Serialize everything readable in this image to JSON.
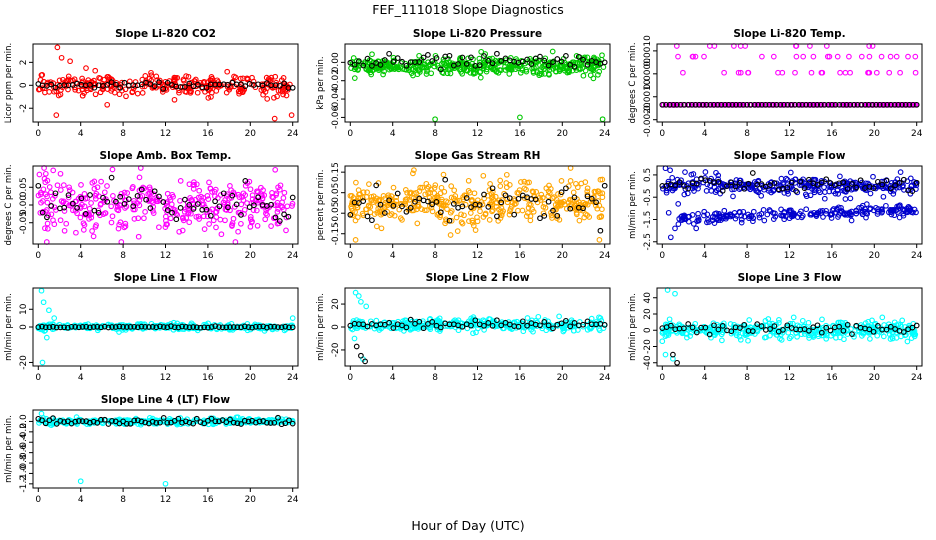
{
  "figure": {
    "title": "FEF_111018  Slope Diagnostics",
    "xlabel": "Hour of Day (UTC)"
  },
  "chart_data": [
    {
      "type": "scatter",
      "title": "Slope Li-820 CO2",
      "ylabel": "Licor ppm per min.",
      "xlim": [
        -0.5,
        24.5
      ],
      "ylim": [
        -3.2,
        3.6
      ],
      "xticks": [
        "0",
        "4",
        "8",
        "12",
        "16",
        "20",
        "24"
      ],
      "yticks": [
        {
          "v": -2,
          "label": "-2"
        },
        {
          "v": 0,
          "label": "0"
        },
        {
          "v": 2,
          "label": "2"
        }
      ],
      "colors": [
        "#ff0000",
        "#000000"
      ],
      "series": [
        {
          "color": "#ff0000",
          "kind": "cloud",
          "center": 0.0,
          "spread": 0.5,
          "density": 300,
          "outliers": [
            [
              1.8,
              3.3
            ],
            [
              2.2,
              2.4
            ],
            [
              1.7,
              -2.6
            ],
            [
              3.0,
              2.1
            ],
            [
              6.5,
              -1.7
            ],
            [
              23.9,
              -2.6
            ],
            [
              22.3,
              -2.9
            ],
            [
              4.5,
              1.5
            ]
          ]
        },
        {
          "color": "#000000",
          "kind": "hourly",
          "center": 0.0,
          "spread": 0.12,
          "density": 60
        }
      ]
    },
    {
      "type": "scatter",
      "title": "Slope Li-820 Pressure",
      "ylabel": "kPa per min.",
      "xlim": [
        -0.5,
        24.5
      ],
      "ylim": [
        -0.065,
        0.02
      ],
      "xticks": [
        "0",
        "4",
        "8",
        "12",
        "16",
        "20",
        "24"
      ],
      "yticks": [
        {
          "v": -0.06,
          "label": "-0.06"
        },
        {
          "v": -0.04,
          "label": "-0.04"
        },
        {
          "v": -0.02,
          "label": "-0.02"
        },
        {
          "v": 0.0,
          "label": "0.00"
        }
      ],
      "colors": [
        "#00c800",
        "#000000"
      ],
      "series": [
        {
          "color": "#00c800",
          "kind": "cloud",
          "center": -0.004,
          "spread": 0.006,
          "density": 420,
          "outliers": [
            [
              8.0,
              -0.062
            ],
            [
              16.0,
              -0.06
            ],
            [
              23.8,
              -0.062
            ]
          ]
        },
        {
          "color": "#000000",
          "kind": "hourly",
          "center": 0.0,
          "spread": 0.004,
          "density": 60
        }
      ]
    },
    {
      "type": "scatter",
      "title": "Slope Li-820 Temp.",
      "ylabel": "degrees C per min.",
      "xlim": [
        -0.5,
        24.5
      ],
      "ylim": [
        -0.0021,
        0.0013
      ],
      "xticks": [
        "0",
        "4",
        "8",
        "12",
        "16",
        "20",
        "24"
      ],
      "yticks": [
        {
          "v": -0.002,
          "label": "-0.0020"
        },
        {
          "v": -0.001,
          "label": "-0.0010"
        },
        {
          "v": 0.0,
          "label": "0.0000"
        },
        {
          "v": 0.001,
          "label": "0.0010"
        }
      ],
      "colors": [
        "#ff00ff",
        "#000000"
      ],
      "series": [
        {
          "color": "#ff00ff",
          "kind": "discrete",
          "levels": [
            -0.00135,
            -0.00065,
            5e-05,
            0.00075,
            0.00125
          ],
          "weights": [
            0.78,
            0.0,
            0.1,
            0.08,
            0.04
          ],
          "density": 260
        },
        {
          "color": "#000000",
          "kind": "hourly",
          "center": -0.00135,
          "spread": 0.0,
          "density": 70
        }
      ]
    },
    {
      "type": "scatter",
      "title": "Slope Amb. Box Temp.",
      "ylabel": "degrees C per min.",
      "xlim": [
        -0.5,
        24.5
      ],
      "ylim": [
        -0.11,
        0.11
      ],
      "xticks": [
        "0",
        "4",
        "8",
        "12",
        "16",
        "20",
        "24"
      ],
      "yticks": [
        {
          "v": -0.05,
          "label": "-0.05"
        },
        {
          "v": 0.0,
          "label": "0.00"
        },
        {
          "v": 0.05,
          "label": "0.05"
        }
      ],
      "colors": [
        "#ff00ff",
        "#000000"
      ],
      "series": [
        {
          "color": "#ff00ff",
          "kind": "cloud",
          "center": 0.0,
          "spread": 0.045,
          "density": 380,
          "outliers": [
            [
              7.0,
              0.1
            ]
          ]
        },
        {
          "color": "#000000",
          "kind": "hourly",
          "center": 0.0,
          "spread": 0.03,
          "density": 60
        }
      ]
    },
    {
      "type": "scatter",
      "title": "Slope Gas Stream RH",
      "ylabel": "percent per min.",
      "xlim": [
        -0.5,
        24.5
      ],
      "ylim": [
        -0.2,
        0.18
      ],
      "xticks": [
        "0",
        "4",
        "8",
        "12",
        "16",
        "20",
        "24"
      ],
      "yticks": [
        {
          "v": -0.15,
          "label": "-0.15"
        },
        {
          "v": -0.05,
          "label": "-0.05"
        },
        {
          "v": 0.05,
          "label": "0.05"
        },
        {
          "v": 0.15,
          "label": "0.15"
        }
      ],
      "colors": [
        "#ffa500",
        "#000000"
      ],
      "series": [
        {
          "color": "#ffa500",
          "kind": "cloud",
          "center": 0.0,
          "spread": 0.06,
          "density": 420,
          "outliers": [
            [
              0.5,
              -0.18
            ],
            [
              6.0,
              0.16
            ],
            [
              23.5,
              -0.18
            ]
          ]
        },
        {
          "color": "#000000",
          "kind": "hourly",
          "center": 0.0,
          "spread": 0.04,
          "density": 60
        }
      ]
    },
    {
      "type": "scatter",
      "title": "Slope Sample Flow",
      "ylabel": "ml/min per min.",
      "xlim": [
        -0.5,
        24.5
      ],
      "ylim": [
        -2.6,
        0.9
      ],
      "xticks": [
        "0",
        "4",
        "8",
        "12",
        "16",
        "20",
        "24"
      ],
      "yticks": [
        {
          "v": -2.5,
          "label": "-2.5"
        },
        {
          "v": -1.5,
          "label": "-1.5"
        },
        {
          "v": -0.5,
          "label": "-0.5"
        },
        {
          "v": 0.5,
          "label": "0.5"
        }
      ],
      "colors": [
        "#0000cd",
        "#000000"
      ],
      "series": [
        {
          "color": "#0000cd",
          "kind": "cloud",
          "center": 0.0,
          "spread": 0.25,
          "density": 300,
          "outliers": [
            [
              0.3,
              0.8
            ],
            [
              0.8,
              -2.3
            ],
            [
              1.2,
              -1.9
            ],
            [
              0.6,
              -1.2
            ],
            [
              1.5,
              -0.8
            ],
            [
              3.2,
              -1.9
            ],
            [
              2.5,
              -1.6
            ]
          ]
        },
        {
          "color": "#0000cd",
          "kind": "band",
          "x0": 1.5,
          "x1": 24.0,
          "y0": -1.45,
          "y1": -1.05,
          "spread": 0.13,
          "density": 220
        },
        {
          "color": "#000000",
          "kind": "hourly",
          "center": 0.05,
          "spread": 0.15,
          "density": 60
        }
      ]
    },
    {
      "type": "scatter",
      "title": "Slope Line 1 Flow",
      "ylabel": "ml/min per min.",
      "xlim": [
        -0.5,
        24.5
      ],
      "ylim": [
        -22,
        22
      ],
      "xticks": [
        "0",
        "4",
        "8",
        "12",
        "16",
        "20",
        "24"
      ],
      "yticks": [
        {
          "v": -20,
          "label": "-20"
        },
        {
          "v": 0,
          "label": "0"
        },
        {
          "v": 10,
          "label": "10"
        }
      ],
      "colors": [
        "#00ffff",
        "#000000"
      ],
      "series": [
        {
          "color": "#00ffff",
          "kind": "cloud",
          "center": 0.0,
          "spread": 1.0,
          "density": 320,
          "outliers": [
            [
              0.3,
              20.5
            ],
            [
              0.5,
              14.0
            ],
            [
              1.0,
              9.5
            ],
            [
              0.4,
              -20.0
            ],
            [
              0.8,
              -6.0
            ],
            [
              1.5,
              5.0
            ],
            [
              24.0,
              5.0
            ]
          ]
        },
        {
          "color": "#000000",
          "kind": "hourly",
          "center": 0.0,
          "spread": 0.2,
          "density": 70
        }
      ]
    },
    {
      "type": "scatter",
      "title": "Slope Line 2 Flow",
      "ylabel": "ml/min per min.",
      "xlim": [
        -0.5,
        24.5
      ],
      "ylim": [
        -34,
        34
      ],
      "xticks": [
        "0",
        "4",
        "8",
        "12",
        "16",
        "20",
        "24"
      ],
      "yticks": [
        {
          "v": -20,
          "label": "-20"
        },
        {
          "v": 0,
          "label": "0"
        },
        {
          "v": 20,
          "label": "20"
        }
      ],
      "colors": [
        "#00ffff",
        "#000000"
      ],
      "series": [
        {
          "color": "#00ffff",
          "kind": "cloud",
          "center": 2.0,
          "spread": 3.0,
          "density": 360,
          "outliers": [
            [
              0.5,
              30.0
            ],
            [
              0.8,
              27.0
            ],
            [
              1.0,
              22.0
            ],
            [
              1.5,
              18.0
            ],
            [
              1.2,
              -28.0
            ],
            [
              0.4,
              -10.0
            ]
          ]
        },
        {
          "color": "#000000",
          "kind": "hourly",
          "center": 2.0,
          "spread": 1.5,
          "density": 60,
          "outliers": [
            [
              0.6,
              -17.0
            ],
            [
              1.0,
              -25.0
            ],
            [
              1.4,
              -30.0
            ]
          ]
        }
      ]
    },
    {
      "type": "scatter",
      "title": "Slope Line 3 Flow",
      "ylabel": "ml/min per min.",
      "xlim": [
        -0.5,
        24.5
      ],
      "ylim": [
        -44,
        52
      ],
      "xticks": [
        "0",
        "4",
        "8",
        "12",
        "16",
        "20",
        "24"
      ],
      "yticks": [
        {
          "v": -40,
          "label": "-40"
        },
        {
          "v": -20,
          "label": "-20"
        },
        {
          "v": 0,
          "label": "0"
        },
        {
          "v": 20,
          "label": "20"
        },
        {
          "v": 40,
          "label": "40"
        }
      ],
      "colors": [
        "#00ffff",
        "#000000"
      ],
      "series": [
        {
          "color": "#00ffff",
          "kind": "cloud",
          "center": 0.0,
          "spread": 6.0,
          "density": 380,
          "outliers": [
            [
              0.5,
              50.0
            ],
            [
              1.2,
              45.0
            ],
            [
              0.3,
              -30.0
            ],
            [
              1.0,
              -35.0
            ]
          ]
        },
        {
          "color": "#000000",
          "kind": "hourly",
          "center": 2.0,
          "spread": 3.0,
          "density": 60,
          "outliers": [
            [
              1.0,
              -30.0
            ],
            [
              1.4,
              -40.0
            ]
          ]
        }
      ]
    },
    {
      "type": "scatter",
      "title": "Slope Line 4 (LT) Flow",
      "ylabel": "ml/min per min.",
      "xlim": [
        -0.5,
        24.5
      ],
      "ylim": [
        -1.28,
        0.22
      ],
      "xticks": [
        "0",
        "4",
        "8",
        "12",
        "16",
        "20",
        "24"
      ],
      "yticks": [
        {
          "v": -1.2,
          "label": "-1.2"
        },
        {
          "v": -1.0,
          "label": "-1.0"
        },
        {
          "v": -0.8,
          "label": "-0.8"
        },
        {
          "v": -0.6,
          "label": "-0.6"
        },
        {
          "v": -0.4,
          "label": "-0.4"
        },
        {
          "v": -0.2,
          "label": "-0.2"
        },
        {
          "v": 0.0,
          "label": "0.0"
        }
      ],
      "colors": [
        "#00ffff",
        "#000000"
      ],
      "series": [
        {
          "color": "#00ffff",
          "kind": "cloud",
          "center": 0.0,
          "spread": 0.03,
          "density": 360,
          "outliers": [
            [
              4.0,
              -1.15
            ],
            [
              12.0,
              -1.2
            ],
            [
              0.3,
              0.15
            ]
          ]
        },
        {
          "color": "#000000",
          "kind": "hourly",
          "center": 0.0,
          "spread": 0.03,
          "density": 70
        }
      ]
    }
  ]
}
